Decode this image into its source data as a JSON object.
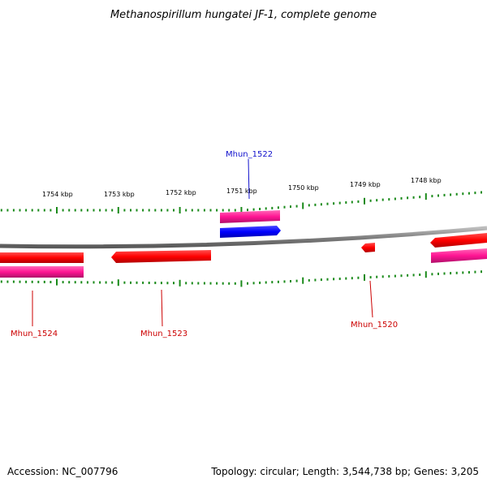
{
  "title": "Methanospirillum hungatei JF-1, complete genome",
  "footer": {
    "accession": "Accession: NC_007796",
    "stats": "Topology: circular; Length: 3,544,738 bp; Genes: 3,205"
  },
  "scale": {
    "unit": "kbp",
    "labels": [
      {
        "kbp": 1754,
        "text": "1754 kbp"
      },
      {
        "kbp": 1753,
        "text": "1753 kbp"
      },
      {
        "kbp": 1752,
        "text": "1752 kbp"
      },
      {
        "kbp": 1751,
        "text": "1751 kbp"
      },
      {
        "kbp": 1750,
        "text": "1750 kbp"
      },
      {
        "kbp": 1749,
        "text": "1749 kbp"
      },
      {
        "kbp": 1748,
        "text": "1748 kbp"
      }
    ]
  },
  "genes": [
    {
      "name": "Mhun_1522",
      "color": "#1010cc"
    },
    {
      "name": "Mhun_1524",
      "color": "#cc0000"
    },
    {
      "name": "Mhun_1523",
      "color": "#cc0000"
    },
    {
      "name": "Mhun_1520",
      "color": "#cc0000"
    }
  ],
  "colors": {
    "forward_cds": "#0000ff",
    "reverse_cds": "#ff0000",
    "gene_bar": "#ff1493",
    "ticks": "#1a8a1a",
    "backbone": "#888888"
  }
}
